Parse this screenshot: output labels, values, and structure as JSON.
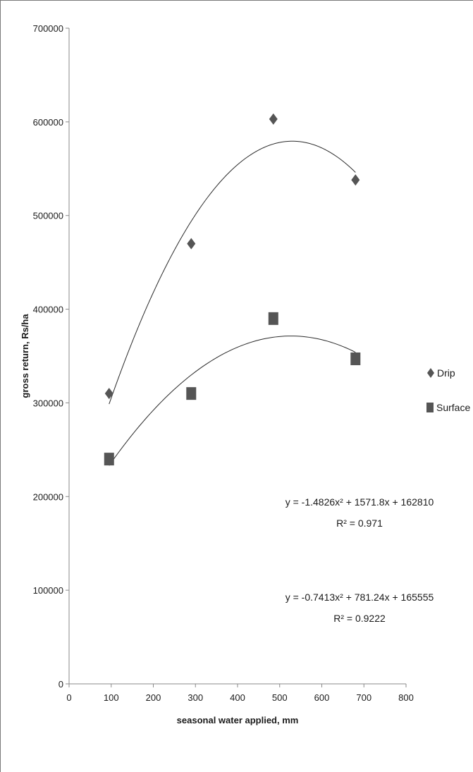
{
  "chart_data": {
    "type": "scatter",
    "title": "",
    "xlabel": "seasonal water applied, mm",
    "ylabel": "gross return, Rs/ha",
    "xlim": [
      0,
      800
    ],
    "ylim": [
      0,
      700000
    ],
    "xticks": [
      0,
      100,
      200,
      300,
      400,
      500,
      600,
      700,
      800
    ],
    "yticks": [
      0,
      100000,
      200000,
      300000,
      400000,
      500000,
      600000,
      700000
    ],
    "grid": false,
    "legend_position": "right",
    "series": [
      {
        "name": "Drip",
        "marker": "diamond",
        "color": "#555555",
        "x": [
          95,
          290,
          485,
          680
        ],
        "y": [
          310000,
          470000,
          603000,
          538000
        ],
        "trendline": {
          "type": "polynomial",
          "order": 2,
          "a": -1.4826,
          "b": 1571.8,
          "c": 162810
        },
        "equation": "y = -1.4826x² + 1571.8x + 162810",
        "r2": "R² = 0.971"
      },
      {
        "name": "Surface",
        "marker": "square",
        "color": "#555555",
        "x": [
          95,
          290,
          485,
          680
        ],
        "y": [
          240000,
          310000,
          390000,
          347000
        ],
        "trendline": {
          "type": "polynomial",
          "order": 2,
          "a": -0.7413,
          "b": 781.24,
          "c": 165555
        },
        "equation": "y = -0.7413x² + 781.24x + 165555",
        "r2": "R² = 0.9222"
      }
    ]
  }
}
